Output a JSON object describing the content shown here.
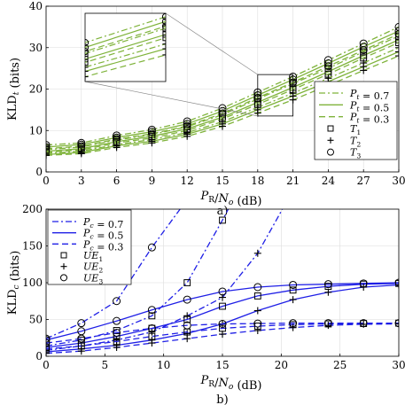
{
  "chart_data": [
    {
      "type": "line",
      "panel_label": "a)",
      "xlabel": "P_R/N_o (dB)",
      "ylabel": "KLD_t (bits)",
      "xlim": [
        0,
        30
      ],
      "ylim": [
        0,
        40
      ],
      "xticks": [
        0,
        3,
        6,
        9,
        12,
        15,
        18,
        21,
        24,
        27,
        30
      ],
      "yticks": [
        0,
        10,
        20,
        30,
        40
      ],
      "grid": true,
      "legend_position": "bottom-right",
      "color": "#7fb33b",
      "legend": [
        {
          "kind": "line",
          "style": "dashdot",
          "label": "P_t = 0.7"
        },
        {
          "kind": "line",
          "style": "solid",
          "label": "P_t = 0.5"
        },
        {
          "kind": "line",
          "style": "dashed",
          "label": "P_t = 0.3"
        },
        {
          "kind": "marker",
          "marker": "square",
          "label": "T_1"
        },
        {
          "kind": "marker",
          "marker": "plus",
          "label": "T_2"
        },
        {
          "kind": "marker",
          "marker": "circle",
          "label": "T_3"
        }
      ],
      "x": [
        0,
        3,
        6,
        9,
        12,
        15,
        18,
        21,
        24,
        27,
        30
      ],
      "series": [
        {
          "style": "dashdot",
          "values": [
            6.5,
            7.0,
            8.8,
            10.2,
            12.2,
            15.4,
            19.2,
            23.0,
            27.0,
            31.0,
            35.0
          ],
          "marker": "circle"
        },
        {
          "style": "solid",
          "values": [
            6.0,
            6.6,
            8.3,
            9.7,
            11.6,
            14.7,
            18.5,
            22.3,
            26.2,
            30.2,
            34.0
          ],
          "marker": "circle"
        },
        {
          "style": "dashed",
          "values": [
            5.6,
            6.2,
            7.9,
            9.2,
            11.1,
            14.1,
            17.9,
            21.6,
            25.5,
            29.4,
            33.3
          ],
          "marker": "circle"
        },
        {
          "style": "dashdot",
          "values": [
            5.4,
            6.0,
            7.7,
            9.0,
            10.9,
            13.8,
            17.6,
            21.3,
            25.0,
            29.0,
            32.8
          ],
          "marker": "square"
        },
        {
          "style": "solid",
          "values": [
            5.0,
            5.6,
            7.3,
            8.6,
            10.4,
            13.2,
            16.8,
            20.4,
            24.2,
            28.1,
            31.9
          ],
          "marker": "square"
        },
        {
          "style": "dashed",
          "values": [
            4.7,
            5.3,
            7.0,
            8.2,
            10.0,
            12.8,
            16.3,
            19.9,
            23.6,
            27.5,
            31.2
          ],
          "marker": "square"
        },
        {
          "style": "dashdot",
          "values": [
            4.5,
            5.0,
            6.6,
            7.8,
            9.5,
            12.1,
            15.6,
            19.0,
            22.6,
            26.3,
            30.0
          ],
          "marker": "plus"
        },
        {
          "style": "solid",
          "values": [
            4.2,
            4.7,
            6.3,
            7.4,
            9.1,
            11.6,
            15.0,
            18.3,
            21.8,
            25.4,
            29.0
          ],
          "marker": "plus"
        },
        {
          "style": "dashed",
          "values": [
            4.0,
            4.4,
            5.9,
            7.0,
            8.6,
            11.0,
            14.2,
            17.4,
            20.9,
            24.5,
            28.0
          ],
          "marker": "plus"
        }
      ],
      "inset_zoom": {
        "xlim": [
          18,
          21
        ],
        "ylim": [
          13.5,
          23.5
        ]
      }
    },
    {
      "type": "line",
      "panel_label": "b)",
      "xlabel": "P_R/N_o (dB)",
      "ylabel": "KLD_c (bits)",
      "xlim": [
        0,
        30
      ],
      "ylim": [
        0,
        200
      ],
      "xticks": [
        0,
        5,
        10,
        15,
        20,
        25,
        30
      ],
      "yticks": [
        0,
        50,
        100,
        150,
        200
      ],
      "grid": true,
      "legend_position": "top-left",
      "color": "#1f1fe6",
      "legend": [
        {
          "kind": "line",
          "style": "dashdot",
          "label": "P_c = 0.7"
        },
        {
          "kind": "line",
          "style": "solid",
          "label": "P_c = 0.5"
        },
        {
          "kind": "line",
          "style": "dashed",
          "label": "P_c = 0.3"
        },
        {
          "kind": "marker",
          "marker": "square",
          "label": "UE_1"
        },
        {
          "kind": "marker",
          "marker": "plus",
          "label": "UE_2"
        },
        {
          "kind": "marker",
          "marker": "circle",
          "label": "UE_3"
        }
      ],
      "series": [
        {
          "style": "dashdot",
          "marker": "circle",
          "x": [
            0,
            3,
            6,
            9,
            11.4
          ],
          "values": [
            24,
            45,
            75,
            148,
            200
          ]
        },
        {
          "style": "dashdot",
          "marker": "square",
          "x": [
            0,
            3,
            6,
            9,
            12,
            15,
            15.5
          ],
          "values": [
            14,
            22,
            35,
            55,
            100,
            185,
            200
          ]
        },
        {
          "style": "dashdot",
          "marker": "plus",
          "x": [
            0,
            3,
            6,
            9,
            12,
            15,
            18,
            20.1
          ],
          "values": [
            8,
            14,
            22,
            33,
            55,
            80,
            140,
            200
          ]
        },
        {
          "style": "solid",
          "marker": "circle",
          "x": [
            0,
            3,
            6,
            9,
            12,
            15,
            18,
            21,
            24,
            27,
            30
          ],
          "values": [
            22,
            34,
            48,
            63,
            77,
            88,
            94,
            97,
            98,
            99,
            100
          ]
        },
        {
          "style": "solid",
          "marker": "square",
          "x": [
            0,
            3,
            6,
            9,
            12,
            15,
            18,
            21,
            24,
            27,
            30
          ],
          "values": [
            12,
            18,
            27,
            38,
            50,
            68,
            82,
            90,
            95,
            98,
            99
          ]
        },
        {
          "style": "solid",
          "marker": "plus",
          "x": [
            0,
            3,
            6,
            9,
            12,
            15,
            18,
            21,
            24,
            27,
            30
          ],
          "values": [
            6,
            10,
            15,
            22,
            31,
            44,
            62,
            77,
            87,
            94,
            97
          ]
        },
        {
          "style": "dashed",
          "marker": "circle",
          "x": [
            0,
            3,
            6,
            9,
            12,
            15,
            18,
            21,
            24,
            27,
            30
          ],
          "values": [
            18,
            24,
            32,
            38,
            42,
            44,
            44.5,
            45,
            45,
            45,
            45
          ]
        },
        {
          "style": "dashed",
          "marker": "square",
          "x": [
            0,
            3,
            6,
            9,
            12,
            15,
            18,
            21,
            24,
            27,
            30
          ],
          "values": [
            10,
            14,
            20,
            27,
            33,
            38,
            41,
            43,
            44,
            44.5,
            45
          ]
        },
        {
          "style": "dashed",
          "marker": "plus",
          "x": [
            0,
            3,
            6,
            9,
            12,
            15,
            18,
            21,
            24,
            27,
            30
          ],
          "values": [
            4,
            7,
            12,
            18,
            24,
            30,
            35,
            39,
            42,
            43.5,
            44
          ]
        }
      ]
    }
  ]
}
